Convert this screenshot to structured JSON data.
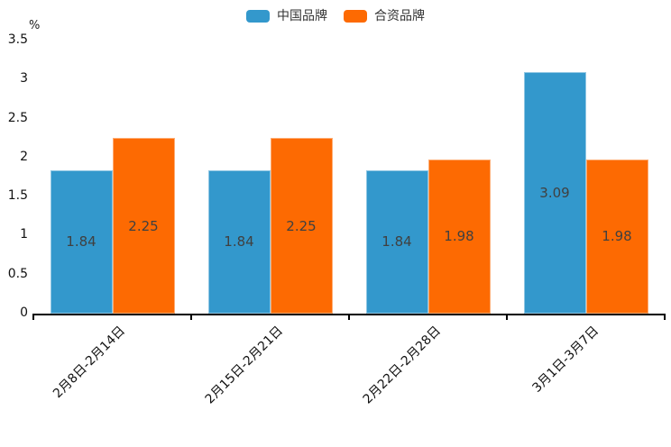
{
  "chart_data": {
    "type": "bar",
    "title": "",
    "categories": [
      "2月8日-2月14日",
      "2月15日-2月21日",
      "2月22日-2月28日",
      "3月1日-3月7日"
    ],
    "series": [
      {
        "name": "中国品牌",
        "color": "#3398cc",
        "values": [
          1.84,
          1.84,
          1.84,
          3.09
        ]
      },
      {
        "name": "合资品牌",
        "color": "#fd6a02",
        "values": [
          2.25,
          2.25,
          1.98,
          1.98
        ]
      }
    ],
    "xlabel": "",
    "ylabel": "%",
    "ylim": [
      0,
      3.5
    ],
    "yticks": [
      0,
      0.5,
      1,
      1.5,
      2,
      2.5,
      3,
      3.5
    ],
    "grid": false,
    "legend_position": "top",
    "value_label_color": "#404040",
    "axis_color": "#000000"
  }
}
